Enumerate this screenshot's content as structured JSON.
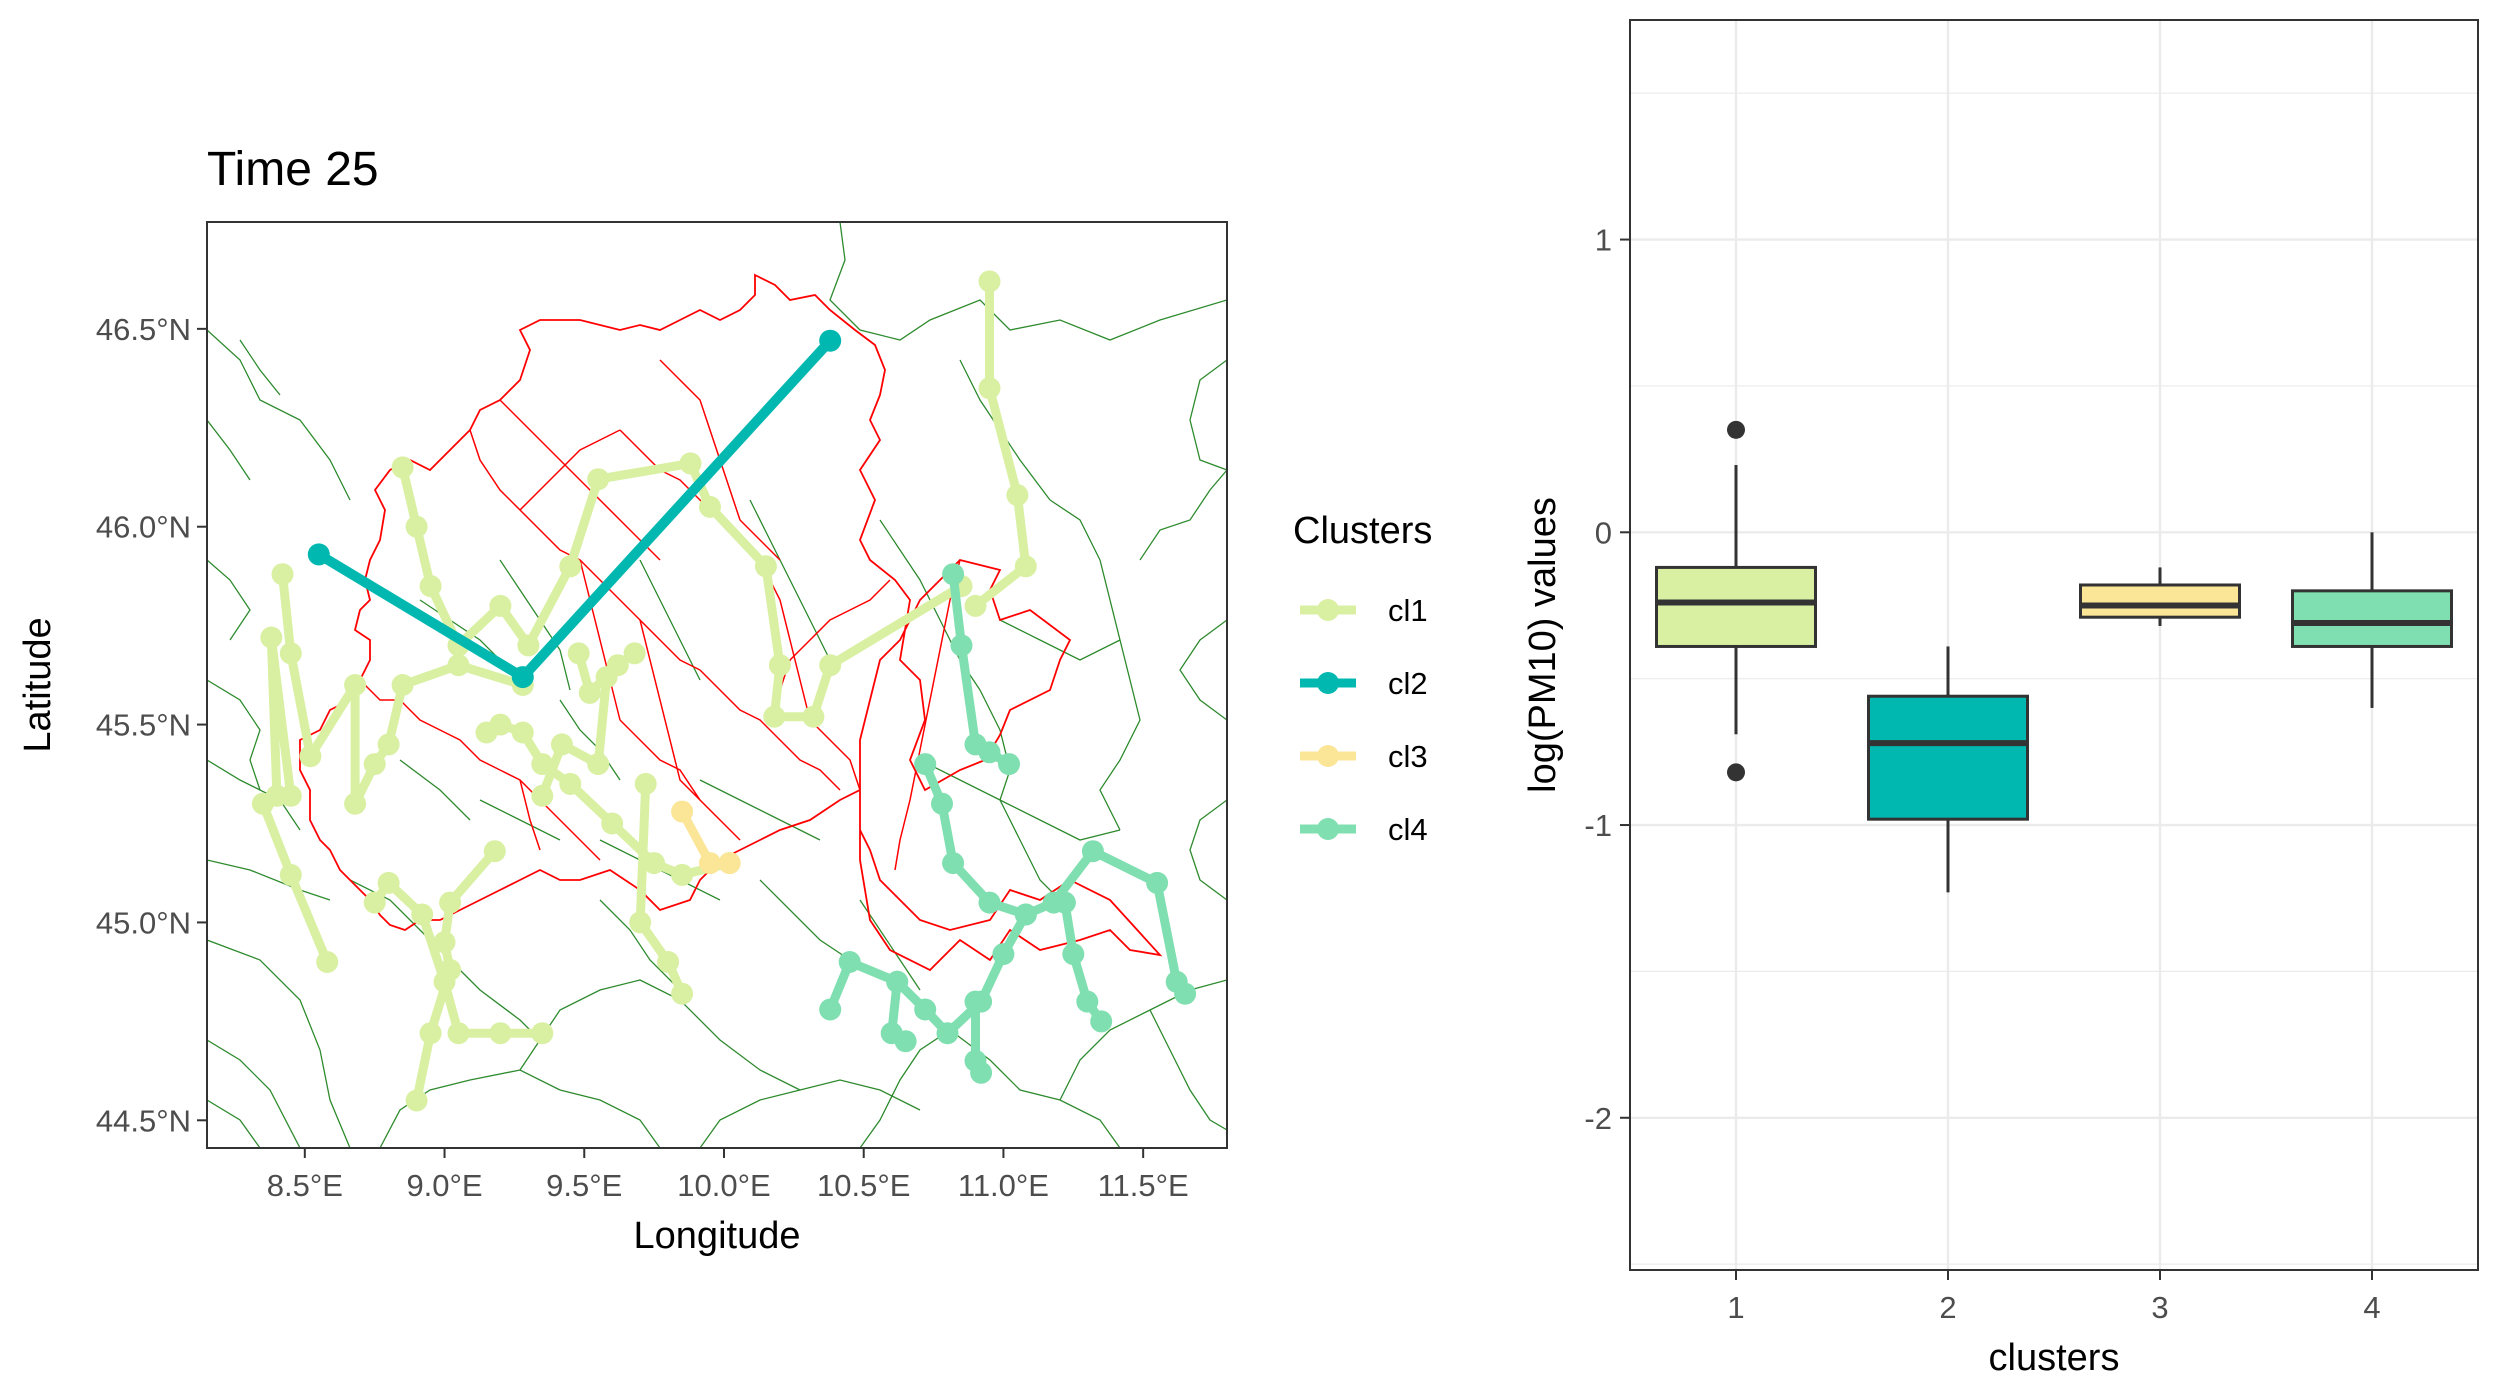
{
  "colors": {
    "cl1": "#d9f0a3",
    "cl2": "#00b8b0",
    "cl3": "#fbe597",
    "cl4": "#7fdfb0",
    "region_border": "#ff0000",
    "province_border": "#2e8b2e",
    "grid": "#ebebeb",
    "panel_border": "#333333",
    "box_line": "#333333"
  },
  "chart_data": [
    {
      "type": "map",
      "title": "Time 25",
      "xlabel": "Longitude",
      "ylabel": "Latitude",
      "xlim": [
        8.15,
        11.8
      ],
      "ylim": [
        44.43,
        46.77
      ],
      "x_ticks": [
        8.5,
        9.0,
        9.5,
        10.0,
        10.5,
        11.0,
        11.5
      ],
      "x_tick_labels": [
        "8.5°E",
        "9.0°E",
        "9.5°E",
        "10.0°E",
        "10.5°E",
        "11.0°E",
        "11.5°E"
      ],
      "y_ticks": [
        44.5,
        45.0,
        45.5,
        46.0,
        46.5
      ],
      "y_tick_labels": [
        "44.5°N",
        "45.0°N",
        "45.5°N",
        "46.0°N",
        "46.5°N"
      ],
      "grid": false,
      "legend": {
        "title": "Clusters",
        "placement": "right",
        "entries": [
          "cl1",
          "cl2",
          "cl3",
          "cl4"
        ]
      },
      "series": [
        {
          "name": "cl1",
          "color_key": "cl1",
          "segments": [
            [
              [
                8.4,
                45.32
              ],
              [
                8.38,
                45.72
              ],
              [
                8.45,
                45.32
              ],
              [
                8.35,
                45.3
              ],
              [
                8.45,
                45.12
              ],
              [
                8.58,
                44.9
              ]
            ],
            [
              [
                8.42,
                45.88
              ],
              [
                8.45,
                45.68
              ],
              [
                8.52,
                45.42
              ],
              [
                8.68,
                45.6
              ],
              [
                8.68,
                45.3
              ],
              [
                8.75,
                45.4
              ],
              [
                8.8,
                45.45
              ],
              [
                8.85,
                45.6
              ],
              [
                9.05,
                45.65
              ],
              [
                9.28,
                45.6
              ]
            ],
            [
              [
                8.85,
                46.15
              ],
              [
                8.9,
                46.0
              ],
              [
                8.95,
                45.85
              ],
              [
                9.05,
                45.7
              ],
              [
                9.2,
                45.8
              ],
              [
                9.3,
                45.7
              ],
              [
                9.45,
                45.9
              ],
              [
                9.55,
                46.12
              ],
              [
                9.88,
                46.16
              ],
              [
                9.95,
                46.05
              ],
              [
                10.15,
                45.9
              ],
              [
                10.2,
                45.65
              ],
              [
                10.18,
                45.52
              ],
              [
                10.32,
                45.52
              ],
              [
                10.38,
                45.65
              ],
              [
                10.85,
                45.85
              ]
            ],
            [
              [
                9.15,
                45.48
              ],
              [
                9.2,
                45.5
              ],
              [
                9.28,
                45.48
              ],
              [
                9.35,
                45.4
              ],
              [
                9.45,
                45.35
              ],
              [
                9.6,
                45.25
              ],
              [
                9.75,
                45.15
              ],
              [
                9.85,
                45.12
              ],
              [
                10.02,
                45.15
              ]
            ],
            [
              [
                9.48,
                45.68
              ],
              [
                9.52,
                45.58
              ],
              [
                9.62,
                45.65
              ],
              [
                9.68,
                45.68
              ]
            ],
            [
              [
                9.35,
                45.32
              ],
              [
                9.42,
                45.45
              ],
              [
                9.55,
                45.4
              ],
              [
                9.58,
                45.62
              ]
            ],
            [
              [
                8.75,
                45.05
              ],
              [
                8.8,
                45.1
              ],
              [
                8.92,
                45.02
              ],
              [
                9.0,
                44.85
              ],
              [
                9.05,
                44.72
              ],
              [
                9.2,
                44.72
              ],
              [
                9.35,
                44.72
              ]
            ],
            [
              [
                9.18,
                45.18
              ],
              [
                9.02,
                45.05
              ],
              [
                9.0,
                44.95
              ],
              [
                9.02,
                44.88
              ],
              [
                8.95,
                44.72
              ],
              [
                8.9,
                44.55
              ]
            ],
            [
              [
                9.72,
                45.35
              ],
              [
                9.7,
                45.0
              ],
              [
                9.8,
                44.9
              ],
              [
                9.85,
                44.82
              ]
            ],
            [
              [
                10.95,
                46.62
              ],
              [
                10.95,
                46.35
              ],
              [
                11.05,
                46.08
              ],
              [
                11.08,
                45.9
              ],
              [
                10.9,
                45.8
              ]
            ]
          ]
        },
        {
          "name": "cl2",
          "color_key": "cl2",
          "segments": [
            [
              [
                8.55,
                45.93
              ],
              [
                9.28,
                45.62
              ],
              [
                10.38,
                46.47
              ]
            ]
          ]
        },
        {
          "name": "cl3",
          "color_key": "cl3",
          "segments": [
            [
              [
                9.85,
                45.28
              ],
              [
                9.95,
                45.15
              ],
              [
                10.02,
                45.15
              ]
            ]
          ]
        },
        {
          "name": "cl4",
          "color_key": "cl4",
          "segments": [
            [
              [
                10.82,
                45.88
              ],
              [
                10.85,
                45.7
              ],
              [
                10.9,
                45.45
              ],
              [
                10.95,
                45.43
              ],
              [
                11.02,
                45.4
              ]
            ],
            [
              [
                10.72,
                45.4
              ],
              [
                10.78,
                45.3
              ],
              [
                10.82,
                45.15
              ],
              [
                10.95,
                45.05
              ],
              [
                11.08,
                45.02
              ],
              [
                11.18,
                45.05
              ],
              [
                11.32,
                45.18
              ],
              [
                11.55,
                45.1
              ],
              [
                11.62,
                44.85
              ],
              [
                11.65,
                44.82
              ]
            ],
            [
              [
                11.22,
                45.05
              ],
              [
                11.25,
                44.92
              ],
              [
                11.3,
                44.8
              ],
              [
                11.35,
                44.75
              ]
            ],
            [
              [
                11.08,
                45.02
              ],
              [
                11.0,
                44.92
              ],
              [
                10.92,
                44.8
              ],
              [
                10.8,
                44.72
              ],
              [
                10.72,
                44.78
              ],
              [
                10.62,
                44.85
              ],
              [
                10.45,
                44.9
              ],
              [
                10.38,
                44.78
              ]
            ],
            [
              [
                10.62,
                44.85
              ],
              [
                10.6,
                44.72
              ],
              [
                10.65,
                44.7
              ]
            ],
            [
              [
                10.9,
                44.8
              ],
              [
                10.9,
                44.65
              ],
              [
                10.92,
                44.62
              ]
            ]
          ]
        }
      ]
    },
    {
      "type": "boxplot",
      "title": "",
      "xlabel": "clusters",
      "ylabel": "log(PM10) values",
      "ylim": [
        -2.52,
        1.75
      ],
      "y_ticks": [
        -2,
        -1,
        0,
        1
      ],
      "y_tick_labels": [
        "-2",
        "-1",
        "0",
        "1"
      ],
      "categories": [
        "1",
        "2",
        "3",
        "4"
      ],
      "grid": true,
      "boxes": [
        {
          "category": "1",
          "color_key": "cl1",
          "whisker_low": -0.69,
          "q1": -0.39,
          "median": -0.24,
          "q3": -0.12,
          "whisker_high": 0.23,
          "outliers": [
            0.35,
            -0.82
          ]
        },
        {
          "category": "2",
          "color_key": "cl2",
          "whisker_low": -1.23,
          "q1": -0.98,
          "median": -0.72,
          "q3": -0.56,
          "whisker_high": -0.39,
          "outliers": []
        },
        {
          "category": "3",
          "color_key": "cl3",
          "whisker_low": -0.32,
          "q1": -0.29,
          "median": -0.25,
          "q3": -0.18,
          "whisker_high": -0.12,
          "outliers": []
        },
        {
          "category": "4",
          "color_key": "cl4",
          "whisker_low": -0.6,
          "q1": -0.39,
          "median": -0.31,
          "q3": -0.2,
          "whisker_high": 0.0,
          "outliers": []
        }
      ]
    }
  ]
}
